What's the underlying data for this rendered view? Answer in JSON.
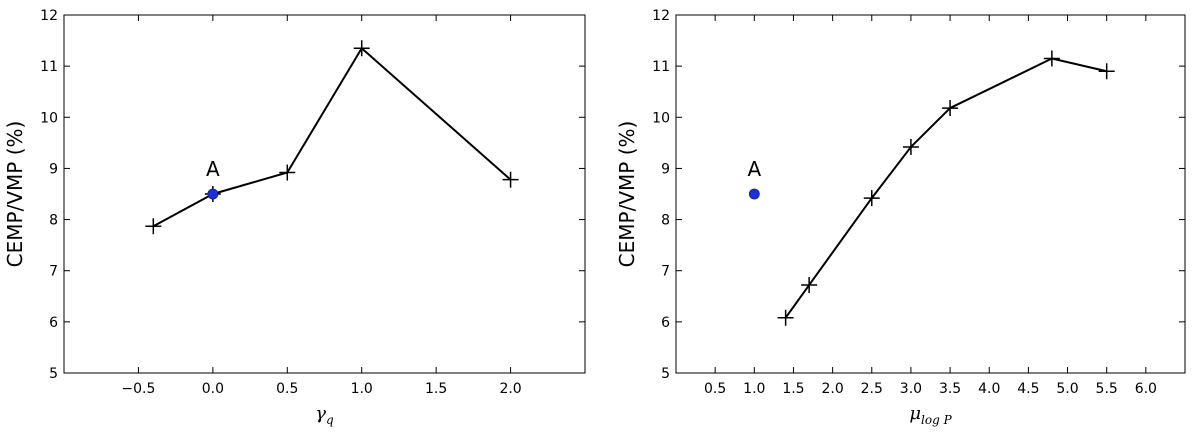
{
  "chart_data": [
    {
      "type": "line",
      "ylabel": "CEMP/VMP (%)",
      "xlabel_symbol": "γ",
      "xlabel_sub": "q",
      "xlim": [
        -1.0,
        2.5
      ],
      "ylim": [
        5,
        12
      ],
      "xticks": [
        -0.5,
        0.0,
        0.5,
        1.0,
        1.5,
        2.0
      ],
      "xtick_labels": [
        "−0.5",
        "0.0",
        "0.5",
        "1.0",
        "1.5",
        "2.0"
      ],
      "yticks": [
        5,
        6,
        7,
        8,
        9,
        10,
        11,
        12
      ],
      "ytick_labels": [
        "5",
        "6",
        "7",
        "8",
        "9",
        "10",
        "11",
        "12"
      ],
      "grid": false,
      "series": [
        {
          "x": [
            -0.4,
            0.0,
            0.5,
            1.0,
            2.0
          ],
          "y": [
            7.87,
            8.5,
            8.92,
            11.35,
            8.78
          ],
          "color": "#000000",
          "marker": "plus"
        }
      ],
      "highlight": {
        "x": 0.0,
        "y": 8.5,
        "color": "#1f2fd6",
        "label": "A"
      }
    },
    {
      "type": "line",
      "ylabel": "CEMP/VMP (%)",
      "xlabel_symbol": "μ",
      "xlabel_sub": "log P",
      "xlim": [
        0.0,
        6.5
      ],
      "ylim": [
        5,
        12
      ],
      "xticks": [
        0.5,
        1.0,
        1.5,
        2.0,
        2.5,
        3.0,
        3.5,
        4.0,
        4.5,
        5.0,
        5.5,
        6.0
      ],
      "xtick_labels": [
        "0.5",
        "1.0",
        "1.5",
        "2.0",
        "2.5",
        "3.0",
        "3.5",
        "4.0",
        "4.5",
        "5.0",
        "5.5",
        "6.0"
      ],
      "yticks": [
        5,
        6,
        7,
        8,
        9,
        10,
        11,
        12
      ],
      "ytick_labels": [
        "5",
        "6",
        "7",
        "8",
        "9",
        "10",
        "11",
        "12"
      ],
      "grid": false,
      "series": [
        {
          "x": [
            1.4,
            1.7,
            2.5,
            3.0,
            3.5,
            4.8,
            5.5
          ],
          "y": [
            6.08,
            6.72,
            8.42,
            9.42,
            10.18,
            11.15,
            10.9
          ],
          "color": "#000000",
          "marker": "plus"
        }
      ],
      "highlight": {
        "x": 1.0,
        "y": 8.5,
        "color": "#1f2fd6",
        "label": "A"
      }
    }
  ]
}
